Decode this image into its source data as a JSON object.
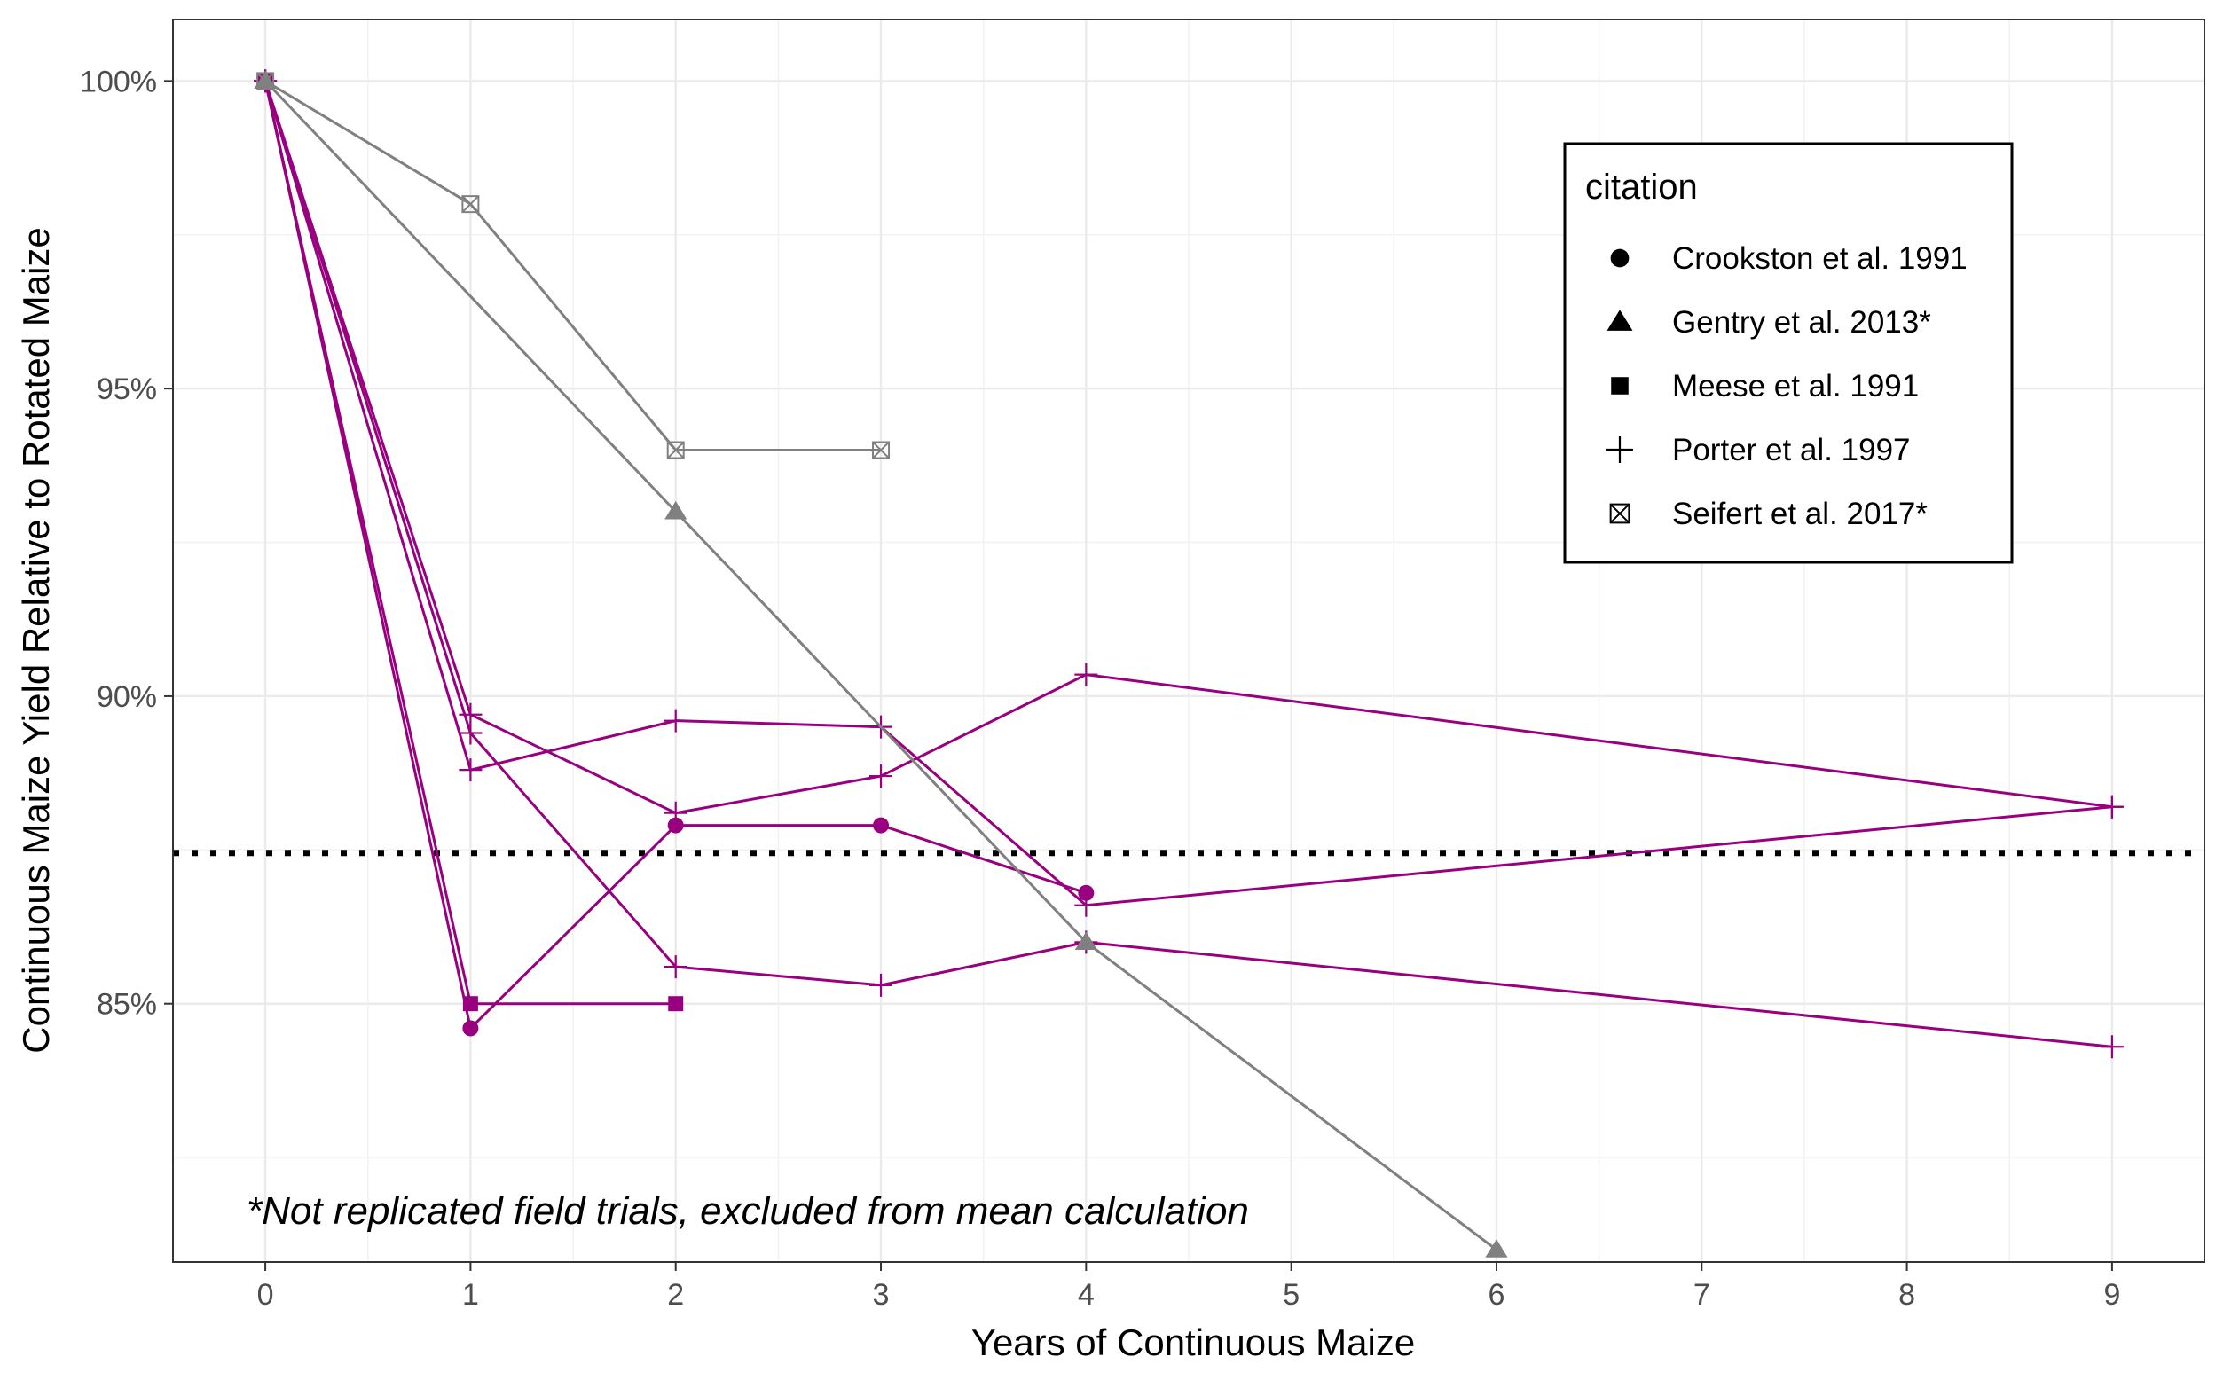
{
  "chart_data": {
    "type": "line",
    "xlabel": "Years of Continuous Maize",
    "ylabel": "Continuous Maize Yield Relative to Rotated Maize",
    "xlim": [
      -0.45,
      9.45
    ],
    "ylim": [
      80.8,
      101.0
    ],
    "x_ticks": [
      0,
      1,
      2,
      3,
      4,
      5,
      6,
      7,
      8,
      9
    ],
    "x_tick_labels": [
      "0",
      "1",
      "2",
      "3",
      "4",
      "5",
      "6",
      "7",
      "8",
      "9"
    ],
    "y_ticks": [
      85,
      90,
      95,
      100
    ],
    "y_tick_labels": [
      "85%",
      "90%",
      "95%",
      "100%"
    ],
    "grid": true,
    "legend": {
      "title": "citation",
      "placement": "top-right",
      "entries": [
        {
          "label": "Crookston et al. 1991",
          "shape": "circle"
        },
        {
          "label": "Gentry et al. 2013*",
          "shape": "triangle"
        },
        {
          "label": "Meese et al. 1991",
          "shape": "square"
        },
        {
          "label": "Porter et al. 1997",
          "shape": "plus"
        },
        {
          "label": "Seifert et al. 2017*",
          "shape": "boxx"
        }
      ]
    },
    "mean_line": {
      "y": 87.45,
      "style": "dotted",
      "color": "#000000"
    },
    "annotation": "*Not replicated field trials, excluded from mean calculation",
    "colors": {
      "replicated": "#990080",
      "not_replicated": "#808080"
    },
    "series": [
      {
        "citation": "Crookston et al. 1991",
        "shape": "circle",
        "color": "#990080",
        "x": [
          0,
          1,
          2,
          3,
          4
        ],
        "y": [
          100,
          84.6,
          87.9,
          87.9,
          86.8
        ]
      },
      {
        "citation": "Meese et al. 1991",
        "shape": "square",
        "color": "#990080",
        "x": [
          0,
          1,
          2
        ],
        "y": [
          100,
          85.0,
          85.0
        ]
      },
      {
        "citation": "Porter et al. 1997",
        "shape": "plus",
        "color": "#990080",
        "x": [
          0,
          1,
          2,
          3,
          4,
          9
        ],
        "y": [
          100,
          89.7,
          88.1,
          88.7,
          90.35,
          88.2
        ]
      },
      {
        "citation": "Porter et al. 1997",
        "shape": "plus",
        "color": "#990080",
        "x": [
          0,
          1,
          2,
          3,
          4,
          9
        ],
        "y": [
          100,
          88.8,
          89.6,
          89.5,
          86.6,
          88.2
        ]
      },
      {
        "citation": "Porter et al. 1997",
        "shape": "plus",
        "color": "#990080",
        "x": [
          0,
          1,
          2,
          3,
          4,
          9
        ],
        "y": [
          100,
          89.4,
          85.6,
          85.3,
          86.0,
          84.3
        ]
      },
      {
        "citation": "Gentry et al. 2013*",
        "shape": "triangle",
        "color": "#808080",
        "x": [
          0,
          2,
          4,
          6
        ],
        "y": [
          100,
          93.0,
          86.0,
          81.0
        ]
      },
      {
        "citation": "Seifert et al. 2017*",
        "shape": "boxx",
        "color": "#808080",
        "x": [
          0,
          1,
          2,
          3
        ],
        "y": [
          100,
          98.0,
          94.0,
          94.0
        ]
      }
    ]
  }
}
